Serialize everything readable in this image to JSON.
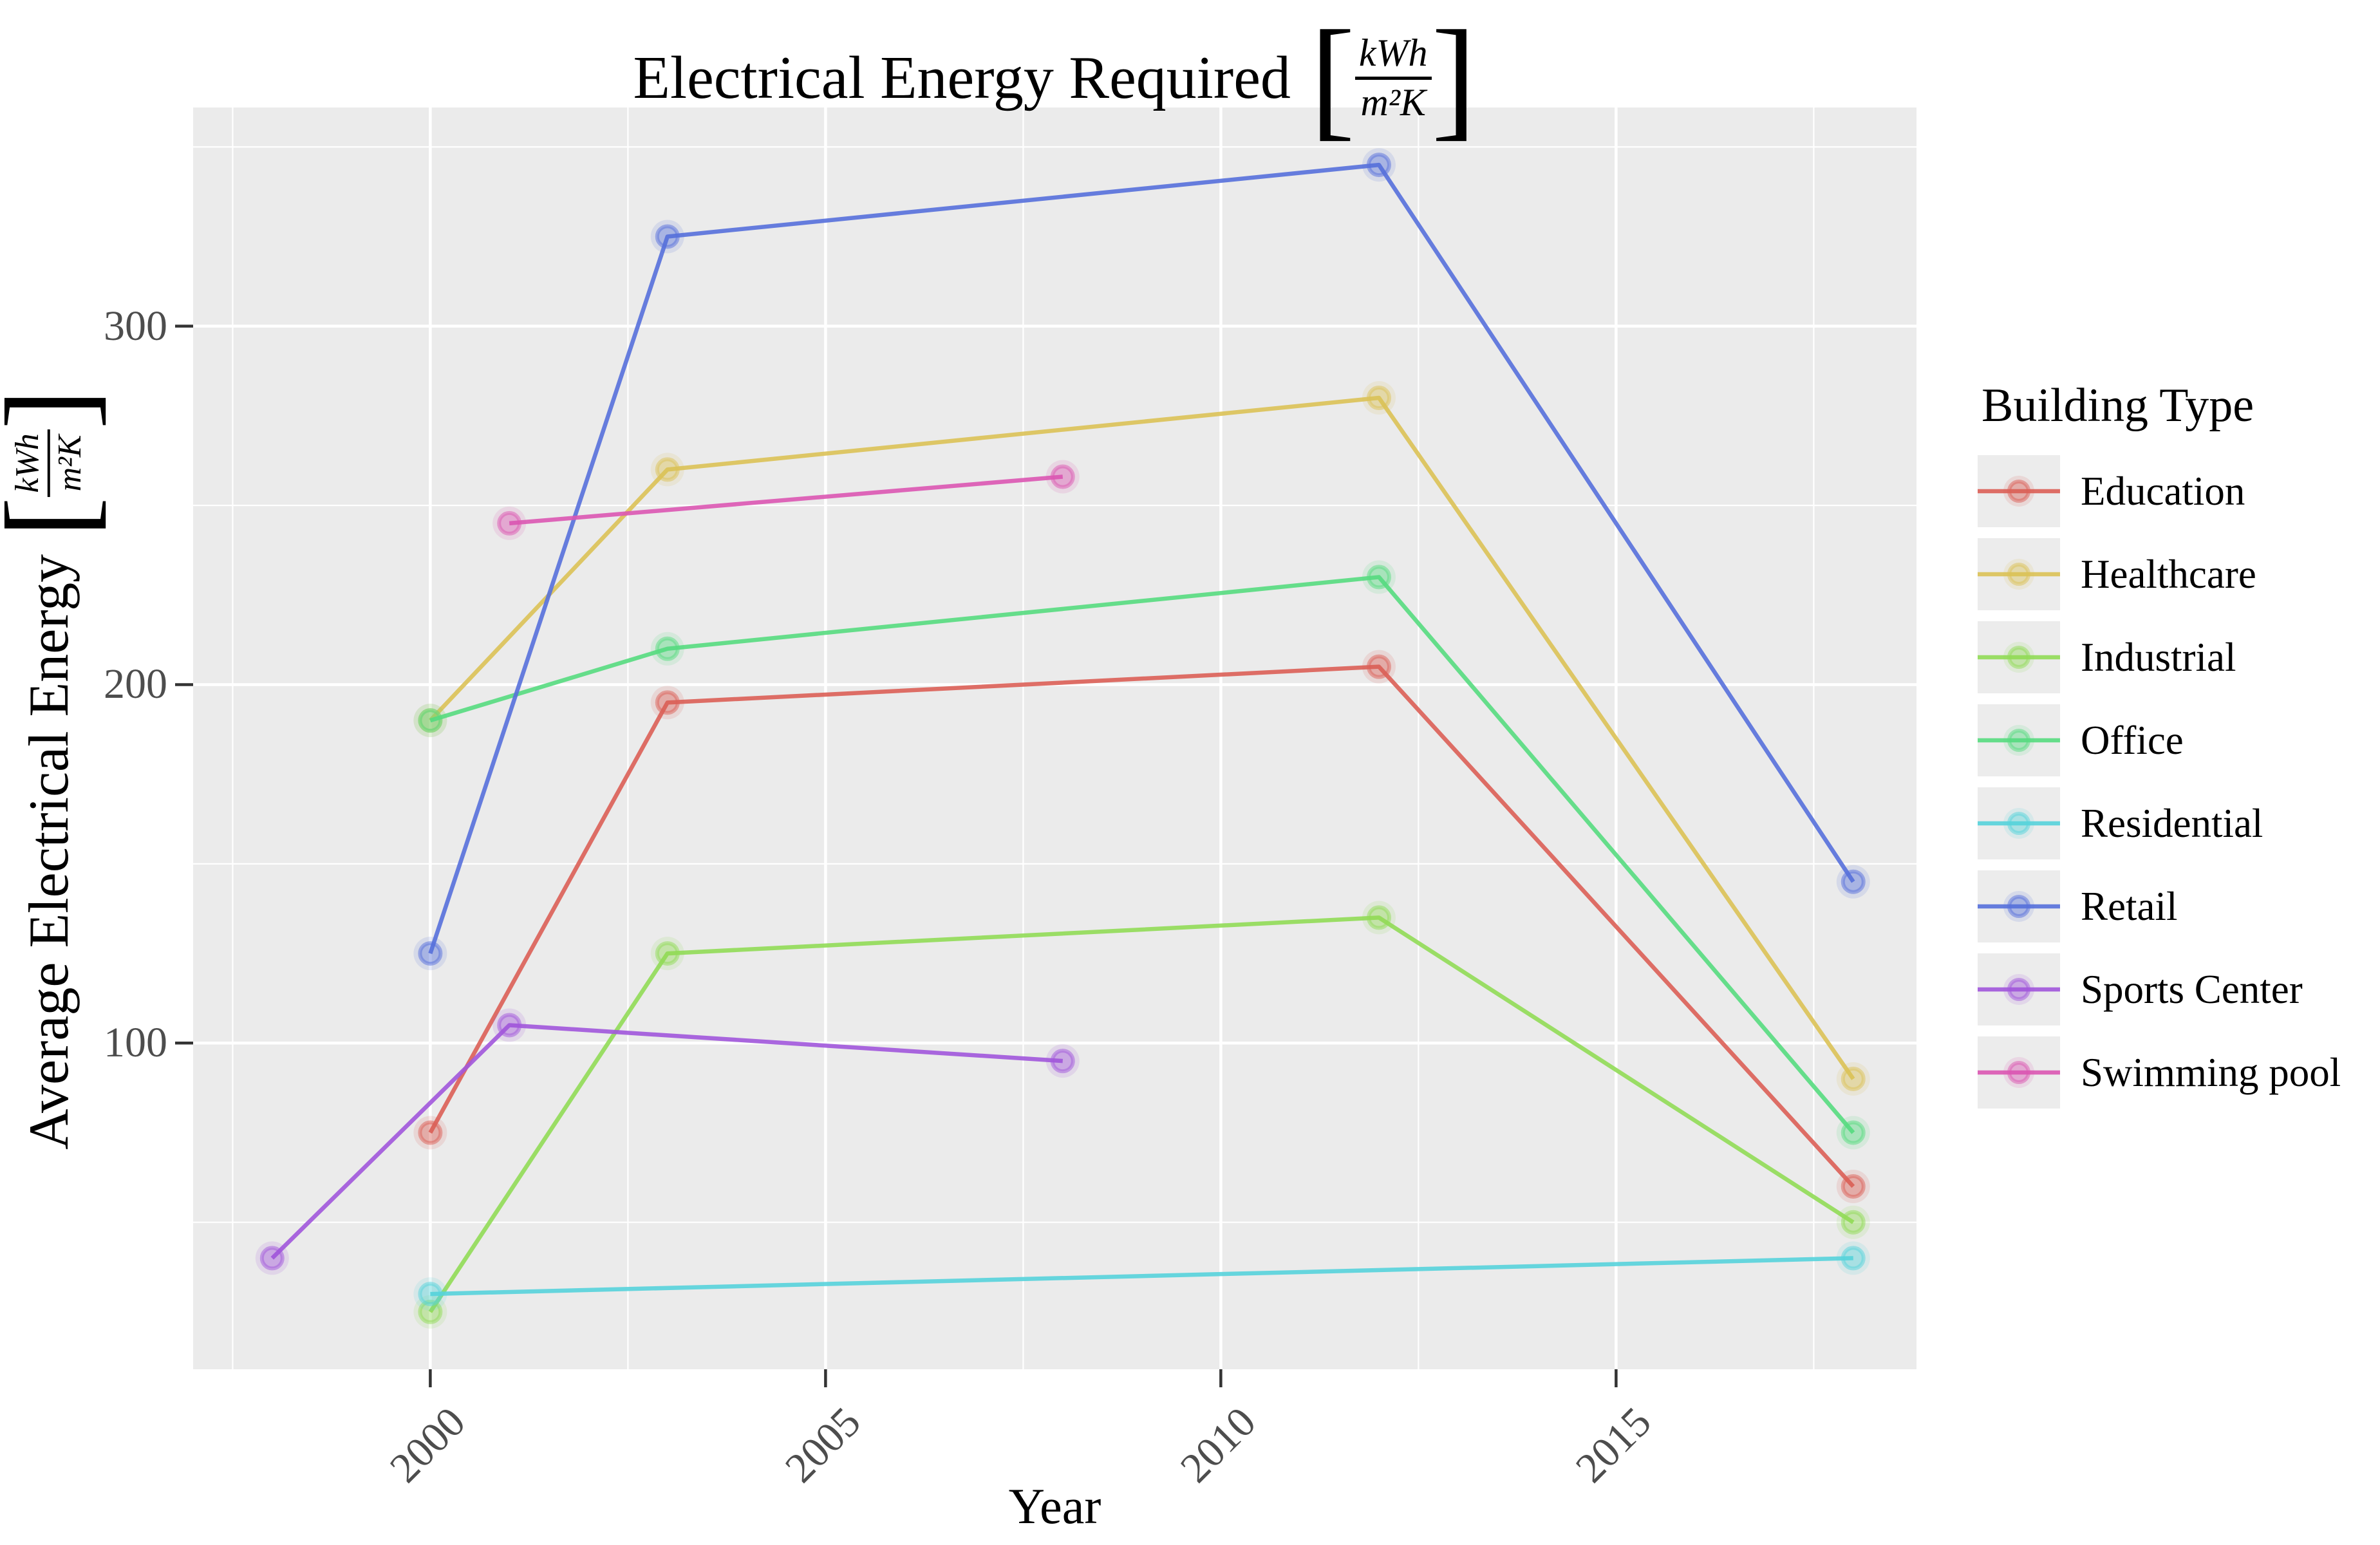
{
  "title": {
    "text": "Electrical Energy Required"
  },
  "unit": {
    "num": "kWh",
    "den": "m²K",
    "lbr": "[",
    "rbr": "]"
  },
  "axes": {
    "x": {
      "label": "Year"
    },
    "y": {
      "label": "Average Electrical Energy"
    }
  },
  "legend": {
    "title": "Building Type"
  },
  "chart_data": {
    "type": "line",
    "title": "Electrical Energy Required [kWh/m²K]",
    "xlabel": "Year",
    "ylabel": "Average Electrical Energy [kWh/m²K]",
    "legend_title": "Building Type",
    "legend_position": "right",
    "grid": true,
    "panel_bg": "#ebebeb",
    "grid_color": "#ffffff",
    "tick_label_color": "#4d4d4d",
    "tick_mark_color": "#333333",
    "xlim": [
      1997.0,
      2018.8
    ],
    "ylim": [
      9,
      361
    ],
    "x_major_ticks": [
      2000,
      2005,
      2010,
      2015
    ],
    "x_minor_ticks": [
      1997.5,
      2002.5,
      2007.5,
      2012.5,
      2017.5
    ],
    "y_major_ticks": [
      100,
      200,
      300
    ],
    "y_minor_ticks": [
      50,
      150,
      250,
      350
    ],
    "series": [
      {
        "name": "Education",
        "color": "#db5f57",
        "x": [
          2000,
          2003,
          2012,
          2018
        ],
        "y": [
          75,
          195,
          205,
          60
        ]
      },
      {
        "name": "Healthcare",
        "color": "#dbc257",
        "x": [
          2000,
          2003,
          2012,
          2018
        ],
        "y": [
          190,
          260,
          280,
          90
        ]
      },
      {
        "name": "Industrial",
        "color": "#91db57",
        "x": [
          2000,
          2003,
          2012,
          2018
        ],
        "y": [
          25,
          125,
          135,
          50
        ]
      },
      {
        "name": "Office",
        "color": "#57db80",
        "x": [
          2000,
          2003,
          2012,
          2018
        ],
        "y": [
          190,
          210,
          230,
          75
        ]
      },
      {
        "name": "Residential",
        "color": "#57d3db",
        "x": [
          2000,
          2018
        ],
        "y": [
          30,
          40
        ]
      },
      {
        "name": "Retail",
        "color": "#5770db",
        "x": [
          2000,
          2003,
          2012,
          2018
        ],
        "y": [
          125,
          325,
          345,
          145
        ]
      },
      {
        "name": "Sports Center",
        "color": "#a157db",
        "x": [
          1998,
          2001,
          2008
        ],
        "y": [
          40,
          105,
          95
        ]
      },
      {
        "name": "Swimming pool",
        "color": "#db57b2",
        "x": [
          2001,
          2008
        ],
        "y": [
          245,
          258
        ]
      }
    ]
  }
}
